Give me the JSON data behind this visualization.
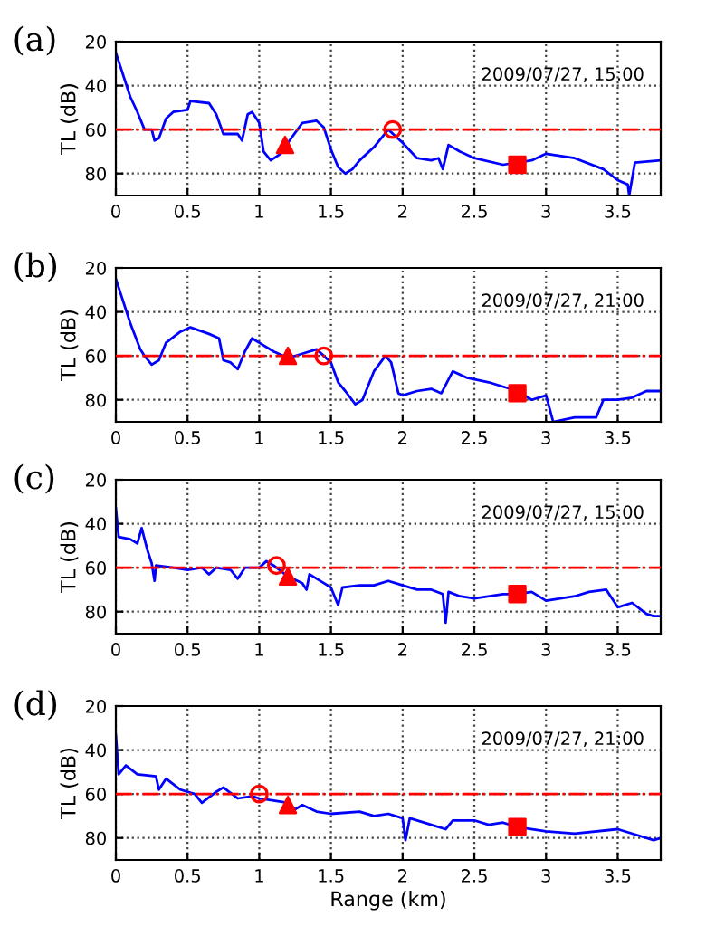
{
  "chart_data": [
    {
      "type": "line",
      "title": "(a)",
      "ylabel": "TL (dB)",
      "annotations": [
        "2009/07/27, 15:00"
      ],
      "xlim": [
        0,
        3.8
      ],
      "ylim": [
        90,
        20
      ],
      "xticks": [
        0,
        0.5,
        1,
        1.5,
        2,
        2.5,
        3,
        3.5
      ],
      "yticks": [
        20,
        40,
        60,
        80
      ],
      "grid": true,
      "legend": false,
      "ref_lines": [
        {
          "axis": "y",
          "value": 60,
          "color": "#ff0000",
          "line_style": "dashed"
        }
      ],
      "series": [
        {
          "color": "#0000ff",
          "x": [
            0,
            0.1,
            0.15,
            0.2,
            0.25,
            0.27,
            0.3,
            0.35,
            0.4,
            0.5,
            0.52,
            0.65,
            0.7,
            0.75,
            0.85,
            0.88,
            0.92,
            0.95,
            1.0,
            1.03,
            1.08,
            1.15,
            1.2,
            1.3,
            1.4,
            1.45,
            1.5,
            1.55,
            1.6,
            1.65,
            1.7,
            1.8,
            1.9,
            1.95,
            2.0,
            2.1,
            2.2,
            2.25,
            2.28,
            2.32,
            2.4,
            2.5,
            2.7,
            2.9,
            3.0,
            3.2,
            3.4,
            3.5,
            3.57,
            3.58,
            3.62,
            3.8
          ],
          "values": [
            25,
            45,
            52,
            60,
            60,
            65,
            64,
            55,
            52,
            51,
            47,
            48,
            53,
            62,
            62,
            65,
            53,
            52,
            57,
            70,
            74,
            71,
            66,
            57,
            56,
            59,
            69,
            77,
            80,
            78,
            74,
            68,
            60,
            63,
            66,
            73,
            74,
            73,
            78,
            67,
            70,
            73,
            76,
            74,
            71,
            73,
            78,
            83,
            85,
            90,
            75,
            74
          ]
        },
        {
          "type": "scatter",
          "marker": "triangle",
          "color": "#ff0000",
          "x": [
            1.18
          ],
          "values": [
            67
          ]
        },
        {
          "type": "scatter",
          "marker": "circle",
          "color": "#ff0000",
          "x": [
            1.93
          ],
          "values": [
            60
          ]
        },
        {
          "type": "scatter",
          "marker": "square",
          "color": "#ff0000",
          "x": [
            2.8
          ],
          "values": [
            76
          ]
        }
      ]
    },
    {
      "type": "line",
      "title": "(b)",
      "ylabel": "TL (dB)",
      "annotations": [
        "2009/07/27, 21:00"
      ],
      "xlim": [
        0,
        3.8
      ],
      "ylim": [
        90,
        20
      ],
      "xticks": [
        0,
        0.5,
        1,
        1.5,
        2,
        2.5,
        3,
        3.5
      ],
      "yticks": [
        20,
        40,
        60,
        80
      ],
      "grid": true,
      "legend": false,
      "ref_lines": [
        {
          "axis": "y",
          "value": 60,
          "color": "#ff0000",
          "line_style": "dashed"
        }
      ],
      "series": [
        {
          "color": "#0000ff",
          "x": [
            0,
            0.1,
            0.17,
            0.2,
            0.25,
            0.3,
            0.35,
            0.45,
            0.52,
            0.65,
            0.72,
            0.75,
            0.8,
            0.85,
            0.9,
            0.95,
            1.0,
            1.1,
            1.2,
            1.3,
            1.4,
            1.45,
            1.5,
            1.55,
            1.6,
            1.67,
            1.72,
            1.8,
            1.88,
            1.92,
            1.97,
            2.0,
            2.1,
            2.2,
            2.27,
            2.35,
            2.45,
            2.6,
            2.8,
            2.9,
            3.0,
            3.05,
            3.2,
            3.35,
            3.4,
            3.5,
            3.6,
            3.7,
            3.8
          ],
          "values": [
            25,
            45,
            57,
            60,
            64,
            62,
            54,
            49,
            47,
            50,
            52,
            62,
            63,
            66,
            58,
            52,
            54,
            58,
            61,
            59,
            57,
            60,
            63,
            72,
            76,
            82,
            80,
            67,
            60,
            63,
            77,
            78,
            76,
            75,
            77,
            67,
            70,
            72,
            76,
            80,
            78,
            90,
            88,
            88,
            80,
            80,
            79,
            76,
            76
          ]
        },
        {
          "type": "scatter",
          "marker": "triangle",
          "color": "#ff0000",
          "x": [
            1.2
          ],
          "values": [
            60
          ]
        },
        {
          "type": "scatter",
          "marker": "circle",
          "color": "#ff0000",
          "x": [
            1.45
          ],
          "values": [
            60
          ]
        },
        {
          "type": "scatter",
          "marker": "square",
          "color": "#ff0000",
          "x": [
            2.8
          ],
          "values": [
            77
          ]
        }
      ]
    },
    {
      "type": "line",
      "title": "(c)",
      "ylabel": "TL (dB)",
      "annotations": [
        "2009/07/27, 15:00"
      ],
      "xlim": [
        0,
        3.8
      ],
      "ylim": [
        90,
        20
      ],
      "xticks": [
        0,
        0.5,
        1,
        1.5,
        2,
        2.5,
        3,
        3.5
      ],
      "yticks": [
        20,
        40,
        60,
        80
      ],
      "grid": true,
      "legend": false,
      "ref_lines": [
        {
          "axis": "y",
          "value": 60,
          "color": "#ff0000",
          "line_style": "dashed"
        }
      ],
      "series": [
        {
          "color": "#0000ff",
          "x": [
            0,
            0.02,
            0.1,
            0.15,
            0.18,
            0.22,
            0.25,
            0.27,
            0.28,
            0.4,
            0.5,
            0.6,
            0.65,
            0.7,
            0.8,
            0.85,
            0.9,
            1.0,
            1.05,
            1.1,
            1.2,
            1.3,
            1.33,
            1.35,
            1.45,
            1.5,
            1.55,
            1.58,
            1.7,
            1.8,
            1.9,
            2.0,
            2.1,
            2.2,
            2.28,
            2.3,
            2.32,
            2.4,
            2.5,
            2.7,
            2.8,
            2.9,
            3.0,
            3.1,
            3.2,
            3.3,
            3.42,
            3.5,
            3.6,
            3.7,
            3.75,
            3.8
          ],
          "values": [
            33,
            46,
            47,
            49,
            42,
            52,
            58,
            66,
            59,
            60,
            61,
            60,
            63,
            60,
            61,
            65,
            60,
            60,
            57,
            59,
            64,
            67,
            70,
            63,
            67,
            69,
            77,
            69,
            68,
            68,
            66,
            68,
            70,
            70,
            72,
            85,
            71,
            73,
            74,
            72,
            72,
            71,
            75,
            74,
            73,
            71,
            70,
            78,
            76,
            81,
            82,
            82
          ]
        },
        {
          "type": "scatter",
          "marker": "circle",
          "color": "#ff0000",
          "x": [
            1.12
          ],
          "values": [
            59
          ]
        },
        {
          "type": "scatter",
          "marker": "triangle",
          "color": "#ff0000",
          "x": [
            1.2
          ],
          "values": [
            64
          ]
        },
        {
          "type": "scatter",
          "marker": "square",
          "color": "#ff0000",
          "x": [
            2.8
          ],
          "values": [
            72
          ]
        }
      ]
    },
    {
      "type": "line",
      "title": "(d)",
      "xlabel": "Range (km)",
      "ylabel": "TL (dB)",
      "annotations": [
        "2009/07/27, 21:00"
      ],
      "xlim": [
        0,
        3.8
      ],
      "ylim": [
        90,
        20
      ],
      "xticks": [
        0,
        0.5,
        1,
        1.5,
        2,
        2.5,
        3,
        3.5
      ],
      "yticks": [
        20,
        40,
        60,
        80
      ],
      "grid": true,
      "legend": false,
      "ref_lines": [
        {
          "axis": "y",
          "value": 60,
          "color": "#ff0000",
          "line_style": "dashed"
        }
      ],
      "series": [
        {
          "color": "#0000ff",
          "x": [
            0,
            0.02,
            0.07,
            0.15,
            0.28,
            0.3,
            0.35,
            0.45,
            0.55,
            0.6,
            0.7,
            0.75,
            0.85,
            0.95,
            1.0,
            1.1,
            1.2,
            1.25,
            1.3,
            1.4,
            1.5,
            1.7,
            1.8,
            1.9,
            2.0,
            2.02,
            2.05,
            2.2,
            2.3,
            2.35,
            2.5,
            2.6,
            2.7,
            2.8,
            3.0,
            3.2,
            3.5,
            3.65,
            3.75,
            3.8
          ],
          "values": [
            33,
            51,
            47,
            51,
            52,
            58,
            53,
            58,
            60,
            64,
            59,
            57,
            62,
            61,
            62,
            63,
            64,
            67,
            65,
            68,
            69,
            68,
            70,
            69,
            71,
            81,
            71,
            74,
            76,
            72,
            72,
            74,
            73,
            75,
            77,
            78,
            76,
            79,
            81,
            80
          ]
        },
        {
          "type": "scatter",
          "marker": "circle",
          "color": "#ff0000",
          "x": [
            1.0
          ],
          "values": [
            60
          ]
        },
        {
          "type": "scatter",
          "marker": "triangle",
          "color": "#ff0000",
          "x": [
            1.2
          ],
          "values": [
            65
          ]
        },
        {
          "type": "scatter",
          "marker": "square",
          "color": "#ff0000",
          "x": [
            2.8
          ],
          "values": [
            75
          ]
        }
      ]
    }
  ]
}
